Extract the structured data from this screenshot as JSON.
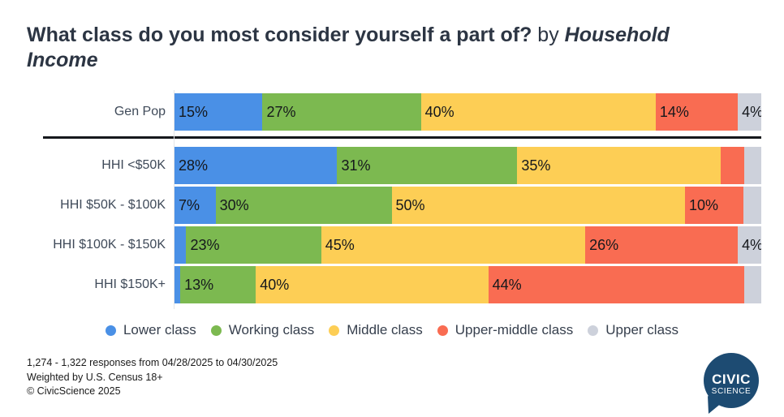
{
  "title": {
    "question": "What class do you most consider yourself a part of?",
    "connector": " by ",
    "breakdown": "Household Income"
  },
  "colors": {
    "lower_class": "#4A90E6",
    "working_class": "#7CB950",
    "middle_class": "#FDCE55",
    "upper_middle_class": "#F96C52",
    "upper_class": "#CDD1DB",
    "title_text": "#2C3543",
    "separator": "#15181C",
    "logo_navy": "#1D4B72"
  },
  "chart_data": {
    "type": "bar",
    "stacked": true,
    "orientation": "horizontal",
    "unit": "%",
    "xlim": [
      0,
      100
    ],
    "grid": false,
    "legend_position": "bottom",
    "series_names": [
      "Lower class",
      "Working class",
      "Middle class",
      "Upper-middle class",
      "Upper class"
    ],
    "series_colors": [
      "#4A90E6",
      "#7CB950",
      "#FDCE55",
      "#F96C52",
      "#CDD1DB"
    ],
    "categories": [
      "Gen Pop",
      "HHI <$50K",
      "HHI $50K - $100K",
      "HHI $100K - $150K",
      "HHI $150K+"
    ],
    "rows": [
      {
        "label": "Gen Pop",
        "values": [
          15,
          27,
          40,
          14,
          4
        ],
        "value_labels": [
          "15%",
          "27%",
          "40%",
          "14%",
          "4%"
        ],
        "separator_after": true
      },
      {
        "label": "HHI <$50K",
        "values": [
          28,
          31,
          35,
          4,
          3
        ],
        "value_labels": [
          "28%",
          "31%",
          "35%",
          "",
          ""
        ],
        "separator_after": false
      },
      {
        "label": "HHI $50K - $100K",
        "values": [
          7,
          30,
          50,
          10,
          3
        ],
        "value_labels": [
          "7%",
          "30%",
          "50%",
          "10%",
          ""
        ],
        "separator_after": false
      },
      {
        "label": "HHI $100K - $150K",
        "values": [
          2,
          23,
          45,
          26,
          4
        ],
        "value_labels": [
          "",
          "23%",
          "45%",
          "26%",
          "4%"
        ],
        "separator_after": false
      },
      {
        "label": "HHI $150K+",
        "values": [
          1,
          13,
          40,
          44,
          3
        ],
        "value_labels": [
          "",
          "13%",
          "40%",
          "44%",
          ""
        ],
        "separator_after": false
      }
    ]
  },
  "legend": [
    {
      "label": "Lower class",
      "color": "#4A90E6"
    },
    {
      "label": "Working class",
      "color": "#7CB950"
    },
    {
      "label": "Middle class",
      "color": "#FDCE55"
    },
    {
      "label": "Upper-middle class",
      "color": "#F96C52"
    },
    {
      "label": "Upper class",
      "color": "#CDD1DB"
    }
  ],
  "footer": {
    "line1": "1,274 - 1,322 responses from 04/28/2025 to 04/30/2025",
    "line2": "Weighted by U.S. Census 18+",
    "line3": "© CivicScience 2025"
  },
  "logo": {
    "line1": "CIVIC",
    "line2": "SCIENCE"
  }
}
